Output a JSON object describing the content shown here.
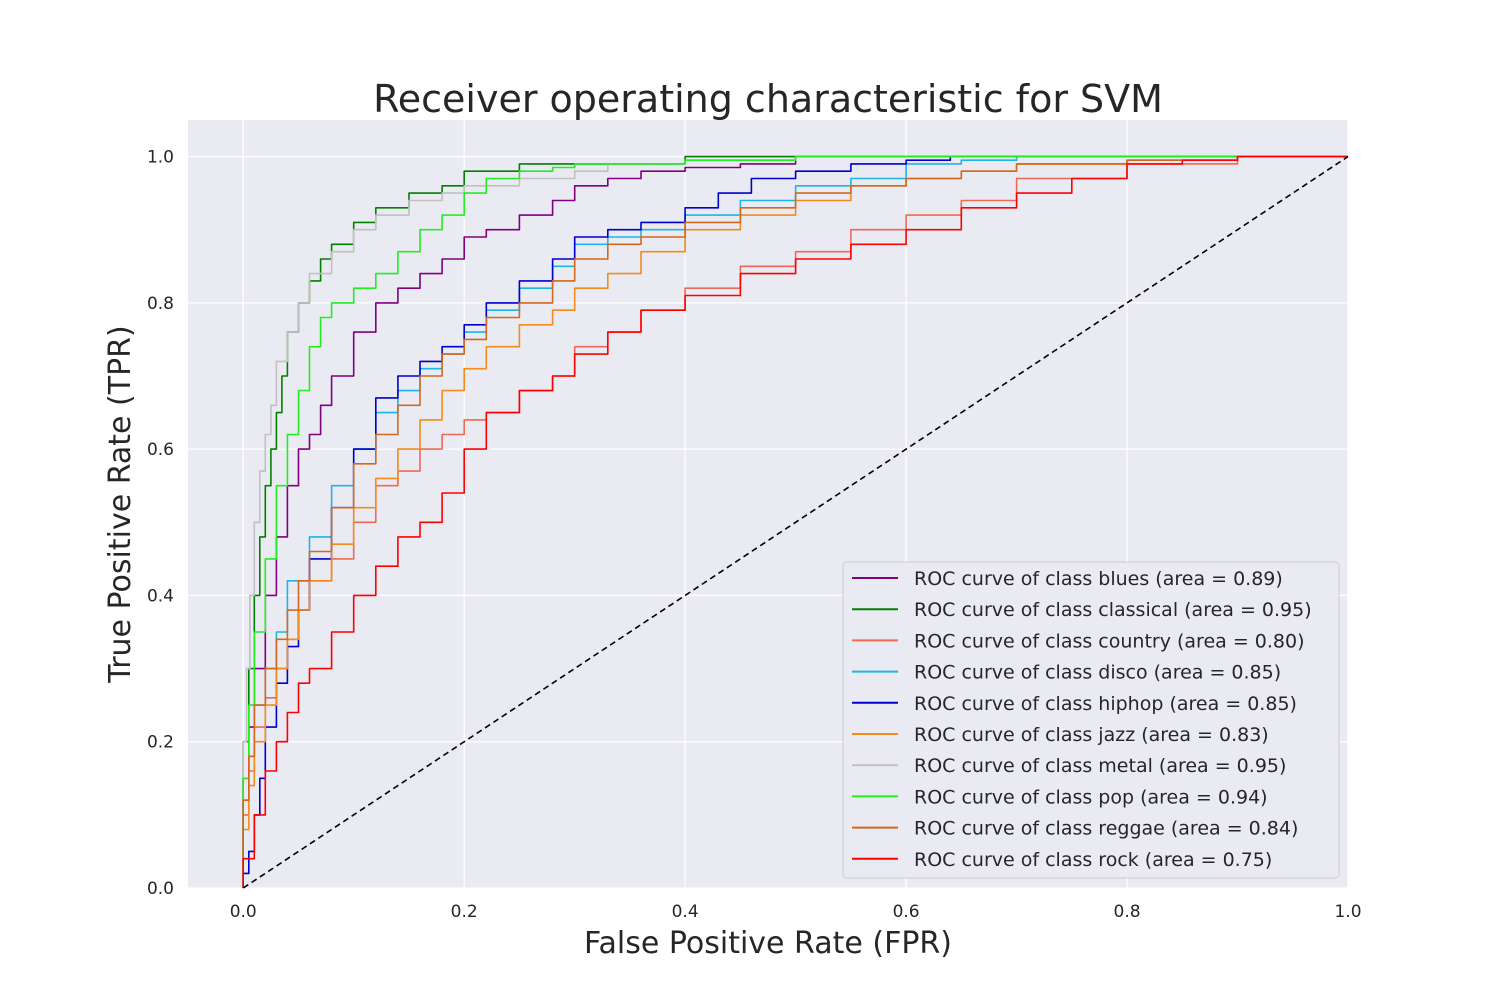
{
  "chart_data": {
    "type": "line",
    "title": "Receiver operating characteristic for SVM",
    "xlabel": "False Positive Rate (FPR)",
    "ylabel": "True Positive Rate (TPR)",
    "xlim": [
      -0.05,
      1.0
    ],
    "ylim": [
      0.0,
      1.05
    ],
    "xticks": [
      "0.0",
      "0.2",
      "0.4",
      "0.6",
      "0.8",
      "1.0"
    ],
    "yticks": [
      "0.0",
      "0.2",
      "0.4",
      "0.6",
      "0.8",
      "1.0"
    ],
    "grid": true,
    "legend_position": "lower-right",
    "series": [
      {
        "name": "ROC curve of class blues (area = 0.89)",
        "color": "#800080",
        "x": [
          0,
          0.005,
          0.01,
          0.02,
          0.03,
          0.04,
          0.05,
          0.06,
          0.07,
          0.08,
          0.1,
          0.12,
          0.14,
          0.16,
          0.18,
          0.2,
          0.22,
          0.25,
          0.28,
          0.3,
          0.33,
          0.36,
          0.4,
          0.45,
          0.5,
          0.55,
          1.0
        ],
        "y": [
          0,
          0.15,
          0.22,
          0.3,
          0.4,
          0.48,
          0.55,
          0.6,
          0.62,
          0.66,
          0.7,
          0.76,
          0.8,
          0.82,
          0.84,
          0.86,
          0.89,
          0.9,
          0.92,
          0.94,
          0.96,
          0.97,
          0.98,
          0.985,
          0.99,
          1.0,
          1.0
        ]
      },
      {
        "name": "ROC curve of class classical (area = 0.95)",
        "color": "#008000",
        "x": [
          0,
          0.005,
          0.01,
          0.015,
          0.02,
          0.025,
          0.03,
          0.035,
          0.04,
          0.05,
          0.06,
          0.07,
          0.08,
          0.1,
          0.12,
          0.15,
          0.18,
          0.2,
          0.25,
          0.3,
          0.4,
          0.5,
          1.0
        ],
        "y": [
          0,
          0.2,
          0.3,
          0.4,
          0.48,
          0.55,
          0.6,
          0.65,
          0.7,
          0.76,
          0.8,
          0.83,
          0.86,
          0.88,
          0.91,
          0.93,
          0.95,
          0.96,
          0.98,
          0.99,
          0.99,
          1.0,
          1.0
        ]
      },
      {
        "name": "ROC curve of class country (area = 0.80)",
        "color": "#ef6a54",
        "x": [
          0,
          0.005,
          0.01,
          0.02,
          0.03,
          0.04,
          0.05,
          0.06,
          0.08,
          0.1,
          0.12,
          0.14,
          0.16,
          0.18,
          0.2,
          0.22,
          0.25,
          0.28,
          0.3,
          0.33,
          0.36,
          0.4,
          0.45,
          0.5,
          0.55,
          0.6,
          0.65,
          0.7,
          0.8,
          0.9,
          1.0
        ],
        "y": [
          0,
          0.1,
          0.16,
          0.22,
          0.26,
          0.3,
          0.34,
          0.38,
          0.42,
          0.45,
          0.5,
          0.55,
          0.57,
          0.6,
          0.62,
          0.64,
          0.65,
          0.68,
          0.7,
          0.74,
          0.76,
          0.79,
          0.82,
          0.85,
          0.87,
          0.9,
          0.92,
          0.94,
          0.97,
          0.99,
          1.0
        ]
      },
      {
        "name": "ROC curve of class disco (area = 0.85)",
        "color": "#1cb5e6",
        "x": [
          0,
          0.005,
          0.01,
          0.02,
          0.03,
          0.04,
          0.06,
          0.08,
          0.1,
          0.12,
          0.14,
          0.16,
          0.18,
          0.2,
          0.22,
          0.25,
          0.28,
          0.3,
          0.33,
          0.36,
          0.4,
          0.45,
          0.5,
          0.55,
          0.6,
          0.65,
          0.7,
          0.75,
          1.0
        ],
        "y": [
          0,
          0.12,
          0.18,
          0.25,
          0.3,
          0.35,
          0.42,
          0.48,
          0.55,
          0.6,
          0.65,
          0.68,
          0.71,
          0.73,
          0.76,
          0.79,
          0.82,
          0.85,
          0.88,
          0.89,
          0.9,
          0.92,
          0.94,
          0.96,
          0.97,
          0.99,
          0.995,
          1.0,
          1.0
        ]
      },
      {
        "name": "ROC curve of class hiphop (area = 0.85)",
        "color": "#0000cd",
        "x": [
          0,
          0.005,
          0.01,
          0.015,
          0.02,
          0.03,
          0.04,
          0.05,
          0.06,
          0.08,
          0.1,
          0.12,
          0.14,
          0.16,
          0.18,
          0.2,
          0.22,
          0.25,
          0.28,
          0.3,
          0.33,
          0.36,
          0.4,
          0.43,
          0.46,
          0.5,
          0.55,
          0.6,
          0.64,
          0.7,
          1.0
        ],
        "y": [
          0,
          0.02,
          0.05,
          0.1,
          0.15,
          0.22,
          0.28,
          0.33,
          0.38,
          0.45,
          0.52,
          0.6,
          0.67,
          0.7,
          0.72,
          0.74,
          0.77,
          0.8,
          0.83,
          0.86,
          0.89,
          0.9,
          0.91,
          0.93,
          0.95,
          0.97,
          0.98,
          0.99,
          0.995,
          1.0,
          1.0
        ]
      },
      {
        "name": "ROC curve of class jazz (area = 0.83)",
        "color": "#f28c1c",
        "x": [
          0,
          0.005,
          0.01,
          0.02,
          0.03,
          0.04,
          0.05,
          0.06,
          0.08,
          0.1,
          0.12,
          0.14,
          0.16,
          0.18,
          0.2,
          0.22,
          0.25,
          0.28,
          0.3,
          0.33,
          0.36,
          0.4,
          0.45,
          0.5,
          0.55,
          0.6,
          0.65,
          0.7,
          0.8,
          0.9,
          0.95,
          1.0
        ],
        "y": [
          0,
          0.08,
          0.14,
          0.2,
          0.25,
          0.3,
          0.34,
          0.38,
          0.42,
          0.47,
          0.52,
          0.56,
          0.6,
          0.64,
          0.68,
          0.71,
          0.74,
          0.77,
          0.79,
          0.82,
          0.84,
          0.87,
          0.9,
          0.92,
          0.94,
          0.96,
          0.97,
          0.98,
          0.99,
          0.995,
          1.0,
          1.0
        ]
      },
      {
        "name": "ROC curve of class metal (area = 0.95)",
        "color": "#c0c0c0",
        "x": [
          0,
          0.003,
          0.006,
          0.01,
          0.015,
          0.02,
          0.025,
          0.03,
          0.04,
          0.05,
          0.06,
          0.08,
          0.1,
          0.12,
          0.15,
          0.18,
          0.2,
          0.25,
          0.3,
          0.33,
          0.4,
          0.5,
          0.6,
          1.0
        ],
        "y": [
          0,
          0.2,
          0.3,
          0.4,
          0.5,
          0.57,
          0.62,
          0.66,
          0.72,
          0.76,
          0.8,
          0.84,
          0.87,
          0.9,
          0.92,
          0.94,
          0.95,
          0.96,
          0.97,
          0.98,
          0.99,
          0.995,
          1.0,
          1.0
        ]
      },
      {
        "name": "ROC curve of class pop (area = 0.94)",
        "color": "#22ee22",
        "x": [
          0,
          0.005,
          0.01,
          0.02,
          0.03,
          0.04,
          0.05,
          0.06,
          0.07,
          0.08,
          0.1,
          0.12,
          0.14,
          0.16,
          0.18,
          0.2,
          0.22,
          0.25,
          0.28,
          0.3,
          0.35,
          0.4,
          0.5,
          0.6,
          0.8,
          1.0
        ],
        "y": [
          0,
          0.15,
          0.25,
          0.35,
          0.45,
          0.55,
          0.62,
          0.68,
          0.74,
          0.78,
          0.8,
          0.82,
          0.84,
          0.87,
          0.9,
          0.92,
          0.95,
          0.97,
          0.98,
          0.985,
          0.99,
          0.99,
          0.995,
          1.0,
          1.0,
          1.0
        ]
      },
      {
        "name": "ROC curve of class reggae (area = 0.84)",
        "color": "#d2691e",
        "x": [
          0,
          0.005,
          0.01,
          0.02,
          0.03,
          0.04,
          0.05,
          0.06,
          0.08,
          0.1,
          0.12,
          0.14,
          0.16,
          0.18,
          0.2,
          0.22,
          0.25,
          0.28,
          0.3,
          0.33,
          0.36,
          0.4,
          0.45,
          0.5,
          0.55,
          0.6,
          0.65,
          0.7,
          0.8,
          0.9,
          1.0
        ],
        "y": [
          0,
          0.12,
          0.18,
          0.25,
          0.3,
          0.34,
          0.38,
          0.42,
          0.46,
          0.52,
          0.58,
          0.62,
          0.66,
          0.7,
          0.73,
          0.75,
          0.78,
          0.8,
          0.83,
          0.86,
          0.88,
          0.89,
          0.91,
          0.93,
          0.95,
          0.96,
          0.97,
          0.98,
          0.99,
          0.995,
          1.0
        ]
      },
      {
        "name": "ROC curve of class rock (area = 0.75)",
        "color": "#ff0000",
        "x": [
          0,
          0.01,
          0.02,
          0.03,
          0.04,
          0.05,
          0.06,
          0.08,
          0.1,
          0.12,
          0.14,
          0.16,
          0.18,
          0.2,
          0.22,
          0.25,
          0.28,
          0.3,
          0.33,
          0.36,
          0.4,
          0.45,
          0.5,
          0.55,
          0.6,
          0.65,
          0.7,
          0.75,
          0.8,
          0.85,
          0.9,
          1.0
        ],
        "y": [
          0,
          0.04,
          0.1,
          0.16,
          0.2,
          0.24,
          0.28,
          0.3,
          0.35,
          0.4,
          0.44,
          0.48,
          0.5,
          0.54,
          0.6,
          0.65,
          0.68,
          0.7,
          0.73,
          0.76,
          0.79,
          0.81,
          0.84,
          0.86,
          0.88,
          0.9,
          0.93,
          0.95,
          0.97,
          0.99,
          0.995,
          1.0
        ]
      }
    ],
    "reference_line": {
      "x": [
        0,
        1
      ],
      "y": [
        0,
        1
      ],
      "color": "#000000",
      "style": "dashed"
    }
  }
}
